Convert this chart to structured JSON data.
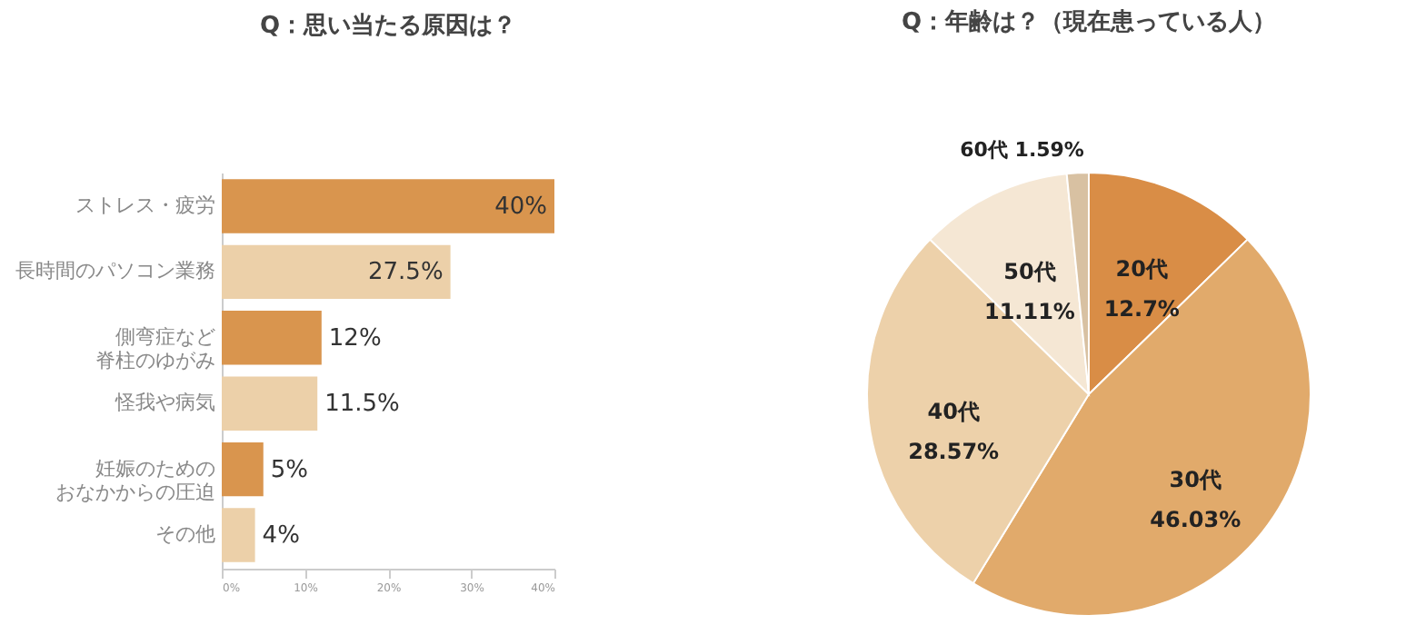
{
  "chart_data": [
    {
      "type": "bar",
      "orientation": "horizontal",
      "title": "Q：思い当たる原因は？",
      "categories": [
        "ストレス・疲労",
        "長時間のパソコン業務",
        "側弯症など脊柱のゆがみ",
        "怪我や病気",
        "妊娠のためのおなかからの圧迫",
        "その他"
      ],
      "values": [
        40,
        27.5,
        12,
        11.5,
        5,
        4
      ],
      "colors": [
        "#d9954e",
        "#ecd0a9",
        "#d9954e",
        "#ecd0a9",
        "#d9954e",
        "#ecd0a9"
      ],
      "value_labels": [
        "40%",
        "27.5%",
        "12%",
        "11.5%",
        "5%",
        "4%"
      ],
      "xlim": [
        0,
        40
      ],
      "xticks": [
        {
          "value": 0,
          "label": "0%"
        },
        {
          "value": 10,
          "label": "10%"
        },
        {
          "value": 20,
          "label": "20%"
        },
        {
          "value": 30,
          "label": "30%"
        },
        {
          "value": 40,
          "label": "40%"
        }
      ],
      "grid": false,
      "legend": false
    },
    {
      "type": "pie",
      "title": "Q：年齢は？（現在患っている人）",
      "categories": [
        "20代",
        "30代",
        "40代",
        "50代",
        "60代"
      ],
      "values": [
        12.7,
        46.03,
        28.57,
        11.11,
        1.59
      ],
      "colors": [
        "#d98d46",
        "#e1aa6b",
        "#edd1aa",
        "#f5e7d4",
        "#d8c1a2"
      ],
      "value_labels": [
        "12.7%",
        "46.03%",
        "28.57%",
        "11.11%",
        "1.59%"
      ],
      "legend": false
    }
  ]
}
